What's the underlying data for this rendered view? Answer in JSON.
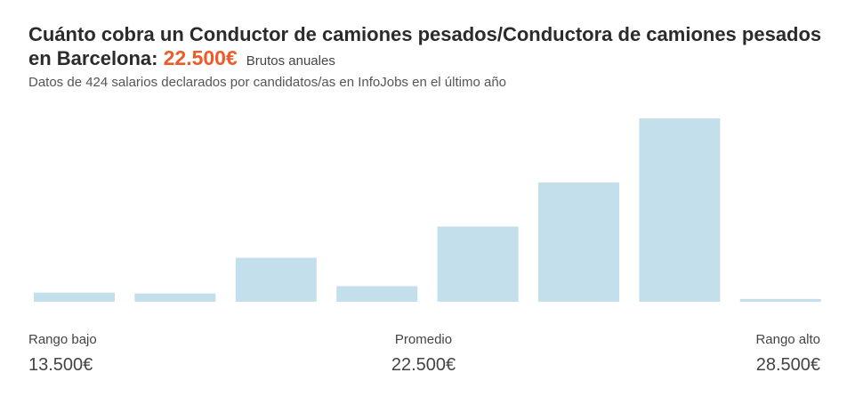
{
  "header": {
    "title_prefix": "Cuánto cobra un Conductor de camiones pesados/Conductora de camiones pesados en Barcelona:",
    "amount": "22.500€",
    "period": "Brutos anuales",
    "subtitle": "Datos de 424 salarios declarados por candidatos/as en InfoJobs en el último año"
  },
  "chart_data": {
    "type": "bar",
    "values": [
      5,
      4.5,
      24,
      8.5,
      41,
      65,
      100,
      1.5
    ],
    "ylim": [
      0,
      100
    ],
    "bar_color": "#c2dfeb"
  },
  "range": {
    "low_label": "Rango bajo",
    "low_value": "13.500€",
    "mid_label": "Promedio",
    "mid_value": "22.500€",
    "high_label": "Rango alto",
    "high_value": "28.500€"
  }
}
